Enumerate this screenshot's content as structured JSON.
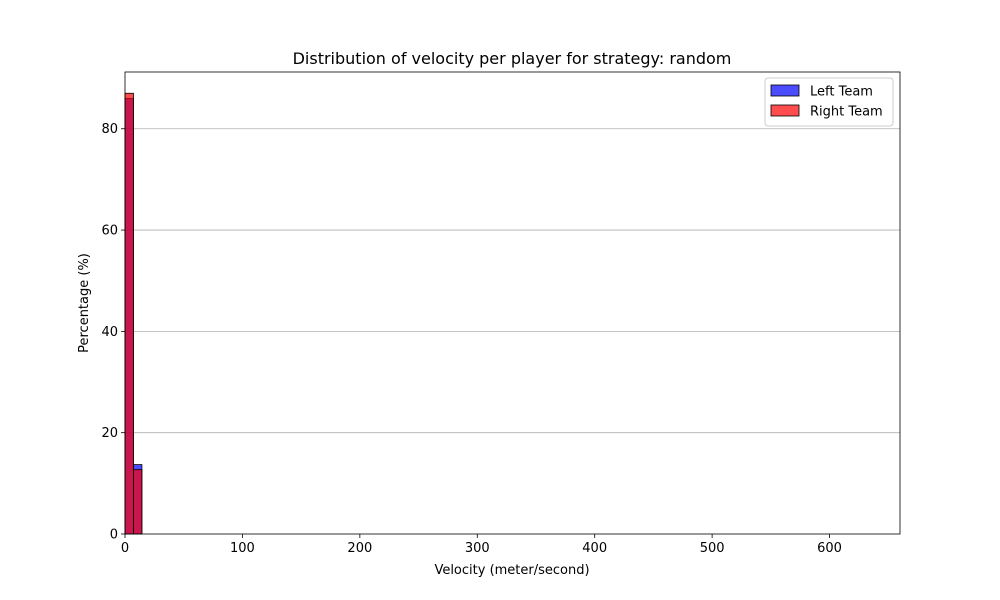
{
  "chart_data": {
    "type": "bar",
    "title": "Distribution of velocity per player for strategy: random",
    "xlabel": "Velocity (meter/second)",
    "ylabel": "Percentage (%)",
    "xlim": [
      0,
      660
    ],
    "ylim": [
      0,
      91.2
    ],
    "xticks": [
      "0",
      "100",
      "200",
      "300",
      "400",
      "500",
      "600"
    ],
    "yticks": [
      "0",
      "20",
      "40",
      "60",
      "80"
    ],
    "grid": "y",
    "legend_position": "top-right",
    "bin_width": 7.2,
    "series": [
      {
        "name": "Left Team",
        "color": "#0000ff",
        "bins": [
          {
            "x0": 0,
            "x1": 7.2,
            "value": 86.0
          },
          {
            "x0": 7.2,
            "x1": 14.4,
            "value": 13.7
          }
        ]
      },
      {
        "name": "Right Team",
        "color": "#ff0000",
        "bins": [
          {
            "x0": 0,
            "x1": 7.2,
            "value": 87.0
          },
          {
            "x0": 7.2,
            "x1": 14.4,
            "value": 12.7
          }
        ]
      }
    ]
  }
}
